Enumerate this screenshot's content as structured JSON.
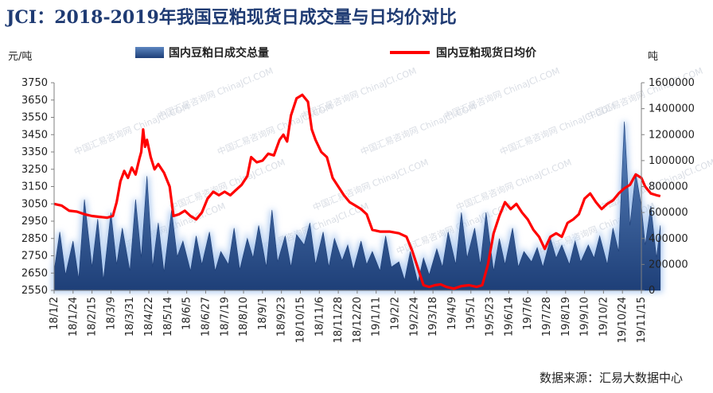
{
  "title": "JCI：2018-2019年我国豆粕现货日成交量与日均价对比",
  "source": "数据来源：汇易大数据中心",
  "watermark": "中国汇易咨询网 ChinaJCI.COM",
  "colors": {
    "line": "#ff0000",
    "area_top": "#5c86c0",
    "area_bottom": "#1e3f78",
    "glow": "#a9c7ef",
    "title": "#1f3b73"
  },
  "chart_data": {
    "type": "line+area",
    "left_axis_unit": "元/吨",
    "right_axis_unit": "吨",
    "left_ylim": [
      2550,
      3750
    ],
    "left_ticks": [
      2550,
      2650,
      2750,
      2850,
      2950,
      3050,
      3150,
      3250,
      3350,
      3450,
      3550,
      3650,
      3750
    ],
    "right_ylim": [
      0,
      1600000
    ],
    "right_ticks": [
      0,
      200000,
      400000,
      600000,
      800000,
      1000000,
      1200000,
      1400000,
      1600000
    ],
    "x_ticks": [
      "18/1/2",
      "18/1/24",
      "18/2/15",
      "18/3/9",
      "18/3/31",
      "18/4/22",
      "18/5/14",
      "18/6/5",
      "18/6/27",
      "18/7/19",
      "18/8/10",
      "18/9/1",
      "18/9/23",
      "18/10/15",
      "18/11/6",
      "18/11/28",
      "18/12/20",
      "19/1/11",
      "19/2/2",
      "19/2/24",
      "19/3/18",
      "19/4/9",
      "19/5/1",
      "19/5/23",
      "19/6/14",
      "19/7/6",
      "19/7/28",
      "19/8/19",
      "19/9/10",
      "19/10/2",
      "19/10/24",
      "19/11/15"
    ],
    "series": [
      {
        "name": "国内豆粕日成交总量",
        "kind": "area",
        "axis": "right",
        "points": [
          [
            0,
            150000
          ],
          [
            0.3,
            450000
          ],
          [
            0.6,
            120000
          ],
          [
            1,
            380000
          ],
          [
            1.3,
            90000
          ],
          [
            1.6,
            700000
          ],
          [
            2,
            180000
          ],
          [
            2.3,
            550000
          ],
          [
            2.6,
            80000
          ],
          [
            3,
            600000
          ],
          [
            3.3,
            200000
          ],
          [
            3.6,
            480000
          ],
          [
            4,
            150000
          ],
          [
            4.3,
            700000
          ],
          [
            4.6,
            250000
          ],
          [
            4.9,
            880000
          ],
          [
            5.2,
            180000
          ],
          [
            5.5,
            520000
          ],
          [
            5.8,
            140000
          ],
          [
            6.2,
            620000
          ],
          [
            6.5,
            260000
          ],
          [
            6.8,
            380000
          ],
          [
            7.2,
            150000
          ],
          [
            7.5,
            420000
          ],
          [
            7.8,
            200000
          ],
          [
            8.2,
            450000
          ],
          [
            8.5,
            150000
          ],
          [
            8.8,
            300000
          ],
          [
            9.2,
            200000
          ],
          [
            9.5,
            480000
          ],
          [
            9.8,
            160000
          ],
          [
            10.2,
            400000
          ],
          [
            10.5,
            250000
          ],
          [
            10.8,
            500000
          ],
          [
            11.2,
            180000
          ],
          [
            11.5,
            620000
          ],
          [
            11.8,
            220000
          ],
          [
            12.2,
            420000
          ],
          [
            12.5,
            180000
          ],
          [
            12.8,
            430000
          ],
          [
            13.2,
            350000
          ],
          [
            13.5,
            520000
          ],
          [
            13.8,
            200000
          ],
          [
            14.2,
            450000
          ],
          [
            14.5,
            180000
          ],
          [
            14.8,
            400000
          ],
          [
            15.2,
            230000
          ],
          [
            15.5,
            350000
          ],
          [
            15.8,
            160000
          ],
          [
            16.2,
            380000
          ],
          [
            16.5,
            200000
          ],
          [
            16.8,
            300000
          ],
          [
            17.2,
            150000
          ],
          [
            17.5,
            420000
          ],
          [
            17.8,
            180000
          ],
          [
            18.2,
            220000
          ],
          [
            18.5,
            80000
          ],
          [
            18.8,
            300000
          ],
          [
            19.2,
            60000
          ],
          [
            19.5,
            250000
          ],
          [
            19.8,
            120000
          ],
          [
            20.2,
            320000
          ],
          [
            20.5,
            180000
          ],
          [
            20.8,
            450000
          ],
          [
            21.2,
            200000
          ],
          [
            21.5,
            600000
          ],
          [
            21.8,
            250000
          ],
          [
            22.2,
            480000
          ],
          [
            22.5,
            200000
          ],
          [
            22.8,
            600000
          ],
          [
            23.2,
            150000
          ],
          [
            23.5,
            400000
          ],
          [
            23.8,
            200000
          ],
          [
            24.2,
            480000
          ],
          [
            24.5,
            180000
          ],
          [
            24.8,
            300000
          ],
          [
            25.2,
            220000
          ],
          [
            25.5,
            330000
          ],
          [
            25.8,
            180000
          ],
          [
            26.2,
            400000
          ],
          [
            26.5,
            250000
          ],
          [
            26.8,
            350000
          ],
          [
            27.2,
            200000
          ],
          [
            27.5,
            380000
          ],
          [
            27.8,
            220000
          ],
          [
            28.2,
            350000
          ],
          [
            28.5,
            250000
          ],
          [
            28.8,
            420000
          ],
          [
            29.2,
            200000
          ],
          [
            29.5,
            480000
          ],
          [
            29.8,
            300000
          ],
          [
            30.1,
            1300000
          ],
          [
            30.4,
            500000
          ],
          [
            30.7,
            900000
          ],
          [
            31,
            650000
          ],
          [
            31.2,
            350000
          ],
          [
            31.5,
            650000
          ],
          [
            31.8,
            250000
          ],
          [
            32,
            500000
          ]
        ]
      },
      {
        "name": "国内豆粕现货日均价",
        "kind": "line",
        "axis": "left",
        "points": [
          [
            0,
            3050
          ],
          [
            0.4,
            3040
          ],
          [
            0.8,
            3010
          ],
          [
            1.2,
            3005
          ],
          [
            1.6,
            2990
          ],
          [
            2,
            2980
          ],
          [
            2.4,
            2975
          ],
          [
            2.8,
            2970
          ],
          [
            3.1,
            2980
          ],
          [
            3.3,
            3060
          ],
          [
            3.5,
            3180
          ],
          [
            3.7,
            3240
          ],
          [
            3.9,
            3200
          ],
          [
            4.1,
            3260
          ],
          [
            4.3,
            3220
          ],
          [
            4.5,
            3310
          ],
          [
            4.6,
            3350
          ],
          [
            4.7,
            3480
          ],
          [
            4.8,
            3380
          ],
          [
            4.9,
            3420
          ],
          [
            5.1,
            3320
          ],
          [
            5.3,
            3250
          ],
          [
            5.5,
            3280
          ],
          [
            5.8,
            3230
          ],
          [
            6.1,
            3150
          ],
          [
            6.3,
            2980
          ],
          [
            6.6,
            2990
          ],
          [
            6.9,
            3010
          ],
          [
            7.2,
            2980
          ],
          [
            7.5,
            2960
          ],
          [
            7.8,
            3000
          ],
          [
            8.1,
            3080
          ],
          [
            8.4,
            3120
          ],
          [
            8.7,
            3100
          ],
          [
            9,
            3120
          ],
          [
            9.3,
            3100
          ],
          [
            9.6,
            3130
          ],
          [
            9.9,
            3160
          ],
          [
            10.2,
            3210
          ],
          [
            10.4,
            3320
          ],
          [
            10.7,
            3290
          ],
          [
            11,
            3300
          ],
          [
            11.3,
            3340
          ],
          [
            11.6,
            3330
          ],
          [
            11.9,
            3420
          ],
          [
            12.1,
            3450
          ],
          [
            12.3,
            3410
          ],
          [
            12.5,
            3560
          ],
          [
            12.8,
            3660
          ],
          [
            13.1,
            3680
          ],
          [
            13.4,
            3640
          ],
          [
            13.6,
            3480
          ],
          [
            13.8,
            3420
          ],
          [
            14.1,
            3350
          ],
          [
            14.4,
            3320
          ],
          [
            14.7,
            3200
          ],
          [
            15,
            3150
          ],
          [
            15.3,
            3100
          ],
          [
            15.6,
            3060
          ],
          [
            15.9,
            3040
          ],
          [
            16.2,
            3020
          ],
          [
            16.5,
            2990
          ],
          [
            16.8,
            2900
          ],
          [
            17.2,
            2890
          ],
          [
            17.7,
            2890
          ],
          [
            18.2,
            2880
          ],
          [
            18.6,
            2860
          ],
          [
            18.9,
            2780
          ],
          [
            19.2,
            2680
          ],
          [
            19.5,
            2580
          ],
          [
            19.8,
            2570
          ],
          [
            20.1,
            2580
          ],
          [
            20.4,
            2585
          ],
          [
            20.7,
            2570
          ],
          [
            21.1,
            2560
          ],
          [
            21.5,
            2575
          ],
          [
            21.9,
            2580
          ],
          [
            22.3,
            2570
          ],
          [
            22.6,
            2580
          ],
          [
            22.9,
            2700
          ],
          [
            23.2,
            2880
          ],
          [
            23.5,
            2980
          ],
          [
            23.8,
            3060
          ],
          [
            24.1,
            3020
          ],
          [
            24.4,
            3050
          ],
          [
            24.7,
            3000
          ],
          [
            25,
            2960
          ],
          [
            25.3,
            2900
          ],
          [
            25.6,
            2860
          ],
          [
            25.9,
            2790
          ],
          [
            26.2,
            2860
          ],
          [
            26.5,
            2880
          ],
          [
            26.8,
            2860
          ],
          [
            27.1,
            2940
          ],
          [
            27.4,
            2960
          ],
          [
            27.7,
            2990
          ],
          [
            28,
            3080
          ],
          [
            28.3,
            3110
          ],
          [
            28.6,
            3060
          ],
          [
            28.9,
            3020
          ],
          [
            29.2,
            3050
          ],
          [
            29.5,
            3070
          ],
          [
            29.8,
            3110
          ],
          [
            30.1,
            3140
          ],
          [
            30.4,
            3160
          ],
          [
            30.7,
            3220
          ],
          [
            31,
            3200
          ],
          [
            31.2,
            3150
          ],
          [
            31.5,
            3110
          ],
          [
            31.8,
            3100
          ],
          [
            32,
            3095
          ]
        ]
      }
    ]
  }
}
